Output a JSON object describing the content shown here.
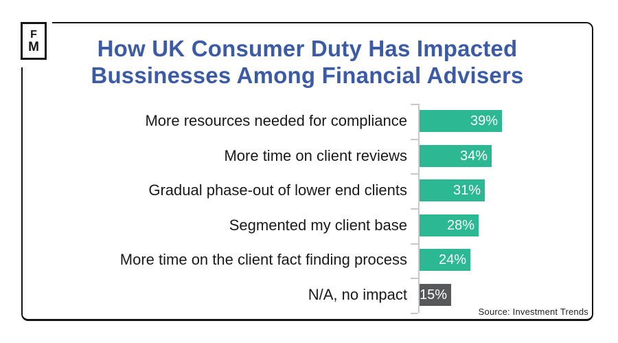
{
  "logo": {
    "line1": "F",
    "line2": "M"
  },
  "title": {
    "line1": "How UK Consumer Duty Has Impacted",
    "line2": "Bussinesses Among Financial Advisers"
  },
  "source": "Source: Investment Trends",
  "colors": {
    "title_blue": "#3c5ba6",
    "bar_teal": "#2bb892",
    "bar_gray": "#57585a",
    "axis_gray": "#c9c9c9",
    "frame_black": "#141414",
    "label_black": "#1a1a1a",
    "value_text_white": "#ffffff"
  },
  "chart_data": {
    "type": "bar",
    "orientation": "horizontal",
    "title": "How UK Consumer Duty Has Impacted Bussinesses Among Financial Advisers",
    "categories": [
      "More resources needed for compliance",
      "More time on client reviews",
      "Gradual phase-out of lower end clients",
      "Segmented my client base",
      "More time on the client fact finding process",
      "N/A, no impact"
    ],
    "values": [
      39,
      34,
      31,
      28,
      24,
      15
    ],
    "value_labels": [
      "39%",
      "34%",
      "31%",
      "28%",
      "24%",
      "15%"
    ],
    "bar_colors": [
      "#2bb892",
      "#2bb892",
      "#2bb892",
      "#2bb892",
      "#2bb892",
      "#57585a"
    ],
    "xlim": [
      0,
      41
    ],
    "grid": false,
    "legend": null,
    "xlabel": "",
    "ylabel": "",
    "source": "Source: Investment Trends"
  }
}
